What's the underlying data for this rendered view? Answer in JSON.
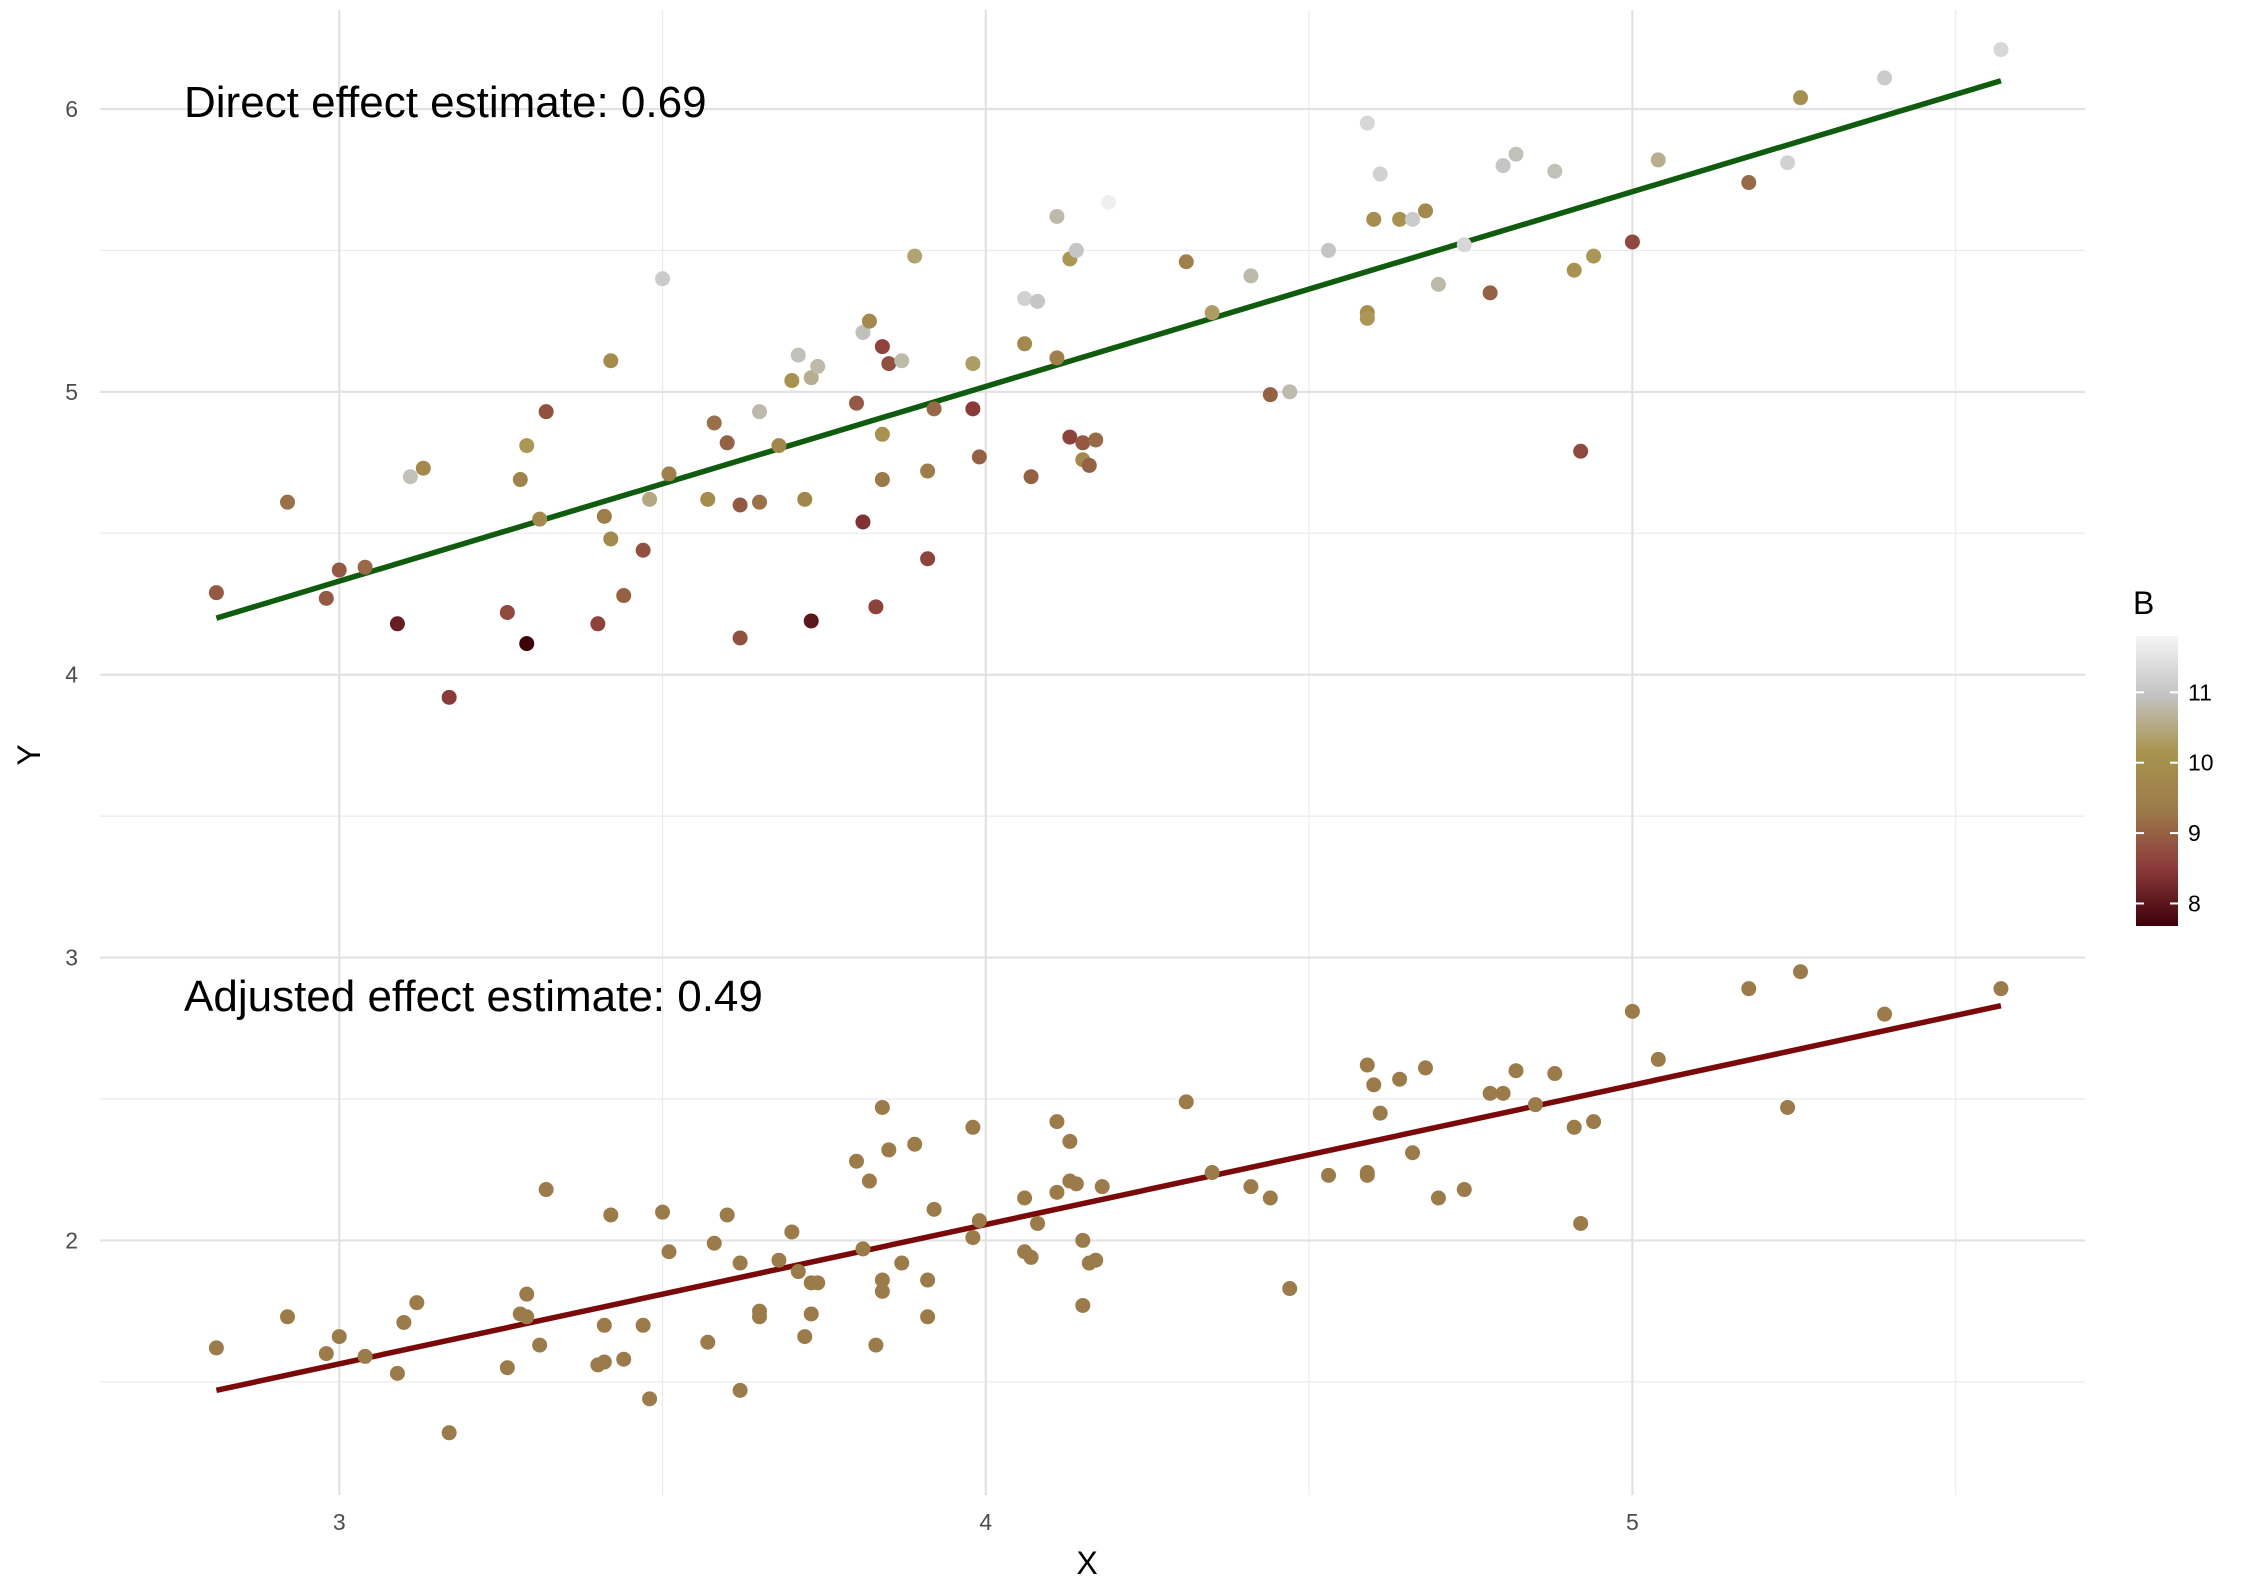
{
  "chart_data": {
    "type": "scatter",
    "xlabel": "X",
    "ylabel": "Y",
    "xlim": [
      2.63,
      5.7
    ],
    "ylim": [
      1.1,
      6.35
    ],
    "x_ticks": [
      "3",
      "4",
      "5"
    ],
    "y_ticks": [
      "2",
      "3",
      "4",
      "5",
      "6"
    ],
    "grid": true,
    "legend": {
      "title": "B",
      "position": "right",
      "ticks": [
        "8",
        "9",
        "10",
        "11"
      ],
      "range": [
        7.68,
        11.8
      ]
    },
    "annotations": [
      {
        "text": "Direct effect estimate: 0.69",
        "x": 2.81,
        "y": 6.14
      },
      {
        "text": "Adjusted effect estimate: 0.49",
        "x": 2.81,
        "y": 2.88
      }
    ],
    "colors": {
      "direct_line": "#0f5c0f",
      "adjusted_line": "#7a0a0a",
      "adjusted_points": "#9c7b4a",
      "color_scale": [
        "#3d0008",
        "#8b3a3a",
        "#9c7b4a",
        "#a8944f",
        "#c4c4c4",
        "#f5f5f5"
      ]
    },
    "series": [
      {
        "name": "direct",
        "color_by": "B",
        "points": [
          [
            2.81,
            4.29,
            8.9
          ],
          [
            2.92,
            4.61,
            9.2
          ],
          [
            2.98,
            4.27,
            8.9
          ],
          [
            3.0,
            4.37,
            8.9
          ],
          [
            3.04,
            4.38,
            9.1
          ],
          [
            3.09,
            4.18,
            8.1
          ],
          [
            3.11,
            4.7,
            10.9
          ],
          [
            3.13,
            4.73,
            9.8
          ],
          [
            3.17,
            3.92,
            8.5
          ],
          [
            3.26,
            4.22,
            8.7
          ],
          [
            3.28,
            4.69,
            9.6
          ],
          [
            3.29,
            4.81,
            10.2
          ],
          [
            3.29,
            4.11,
            7.68
          ],
          [
            3.31,
            4.55,
            9.8
          ],
          [
            3.32,
            4.93,
            8.8
          ],
          [
            3.4,
            4.18,
            8.6
          ],
          [
            3.41,
            4.56,
            9.4
          ],
          [
            3.42,
            4.48,
            9.8
          ],
          [
            3.42,
            5.11,
            9.9
          ],
          [
            3.44,
            4.28,
            9.0
          ],
          [
            3.47,
            4.44,
            8.8
          ],
          [
            3.48,
            4.62,
            10.5
          ],
          [
            3.5,
            5.4,
            11.1
          ],
          [
            3.51,
            4.71,
            9.5
          ],
          [
            3.57,
            4.62,
            9.9
          ],
          [
            3.58,
            4.89,
            9.2
          ],
          [
            3.6,
            4.82,
            9.0
          ],
          [
            3.62,
            4.6,
            8.9
          ],
          [
            3.62,
            4.13,
            8.8
          ],
          [
            3.65,
            4.61,
            9.2
          ],
          [
            3.65,
            4.93,
            10.8
          ],
          [
            3.68,
            4.81,
            9.7
          ],
          [
            3.7,
            5.04,
            10.1
          ],
          [
            3.71,
            5.13,
            10.9
          ],
          [
            3.72,
            4.62,
            9.7
          ],
          [
            3.73,
            5.05,
            10.6
          ],
          [
            3.73,
            4.19,
            8.0
          ],
          [
            3.74,
            5.09,
            10.8
          ],
          [
            3.8,
            4.96,
            8.9
          ],
          [
            3.81,
            5.21,
            10.9
          ],
          [
            3.81,
            4.54,
            8.4
          ],
          [
            3.82,
            5.25,
            9.8
          ],
          [
            3.83,
            4.24,
            8.6
          ],
          [
            3.84,
            4.85,
            10.1
          ],
          [
            3.84,
            5.16,
            8.6
          ],
          [
            3.84,
            4.69,
            9.3
          ],
          [
            3.85,
            5.1,
            8.8
          ],
          [
            3.87,
            5.11,
            10.8
          ],
          [
            3.89,
            5.48,
            10.4
          ],
          [
            3.91,
            4.72,
            9.4
          ],
          [
            3.91,
            4.41,
            8.6
          ],
          [
            3.92,
            4.94,
            9.1
          ],
          [
            3.98,
            5.1,
            10.3
          ],
          [
            3.98,
            4.94,
            8.5
          ],
          [
            3.99,
            4.77,
            9.0
          ],
          [
            4.06,
            5.33,
            11.2
          ],
          [
            4.06,
            5.17,
            9.8
          ],
          [
            4.07,
            4.7,
            9.0
          ],
          [
            4.08,
            5.32,
            11.0
          ],
          [
            4.11,
            5.62,
            10.8
          ],
          [
            4.11,
            5.12,
            9.5
          ],
          [
            4.13,
            5.47,
            10.2
          ],
          [
            4.13,
            4.84,
            8.6
          ],
          [
            4.14,
            5.5,
            11.0
          ],
          [
            4.15,
            4.76,
            9.8
          ],
          [
            4.15,
            4.82,
            8.9
          ],
          [
            4.16,
            4.74,
            9.0
          ],
          [
            4.17,
            4.83,
            9.1
          ],
          [
            4.19,
            5.67,
            11.7
          ],
          [
            4.31,
            5.46,
            9.5
          ],
          [
            4.35,
            5.28,
            10.3
          ],
          [
            4.41,
            5.41,
            10.8
          ],
          [
            4.44,
            4.99,
            9.0
          ],
          [
            4.47,
            5.0,
            10.8
          ],
          [
            4.53,
            5.5,
            11.0
          ],
          [
            4.59,
            5.95,
            11.3
          ],
          [
            4.59,
            5.28,
            10.0
          ],
          [
            4.59,
            5.26,
            10.2
          ],
          [
            4.6,
            5.61,
            10.0
          ],
          [
            4.61,
            5.77,
            11.2
          ],
          [
            4.64,
            5.61,
            10.1
          ],
          [
            4.66,
            5.61,
            11.1
          ],
          [
            4.68,
            5.64,
            9.8
          ],
          [
            4.7,
            5.38,
            10.8
          ],
          [
            4.74,
            5.52,
            11.3
          ],
          [
            4.78,
            5.35,
            9.0
          ],
          [
            4.8,
            5.8,
            11.0
          ],
          [
            4.82,
            5.84,
            10.9
          ],
          [
            4.88,
            5.78,
            10.9
          ],
          [
            4.91,
            5.43,
            10.1
          ],
          [
            4.92,
            4.79,
            8.7
          ],
          [
            4.94,
            5.48,
            10.2
          ],
          [
            5.0,
            5.53,
            8.7
          ],
          [
            5.04,
            5.82,
            10.6
          ],
          [
            5.18,
            5.74,
            9.1
          ],
          [
            5.24,
            5.81,
            11.2
          ],
          [
            5.26,
            6.04,
            10.0
          ],
          [
            5.39,
            6.11,
            11.1
          ],
          [
            5.57,
            6.21,
            11.3
          ]
        ]
      },
      {
        "name": "adjusted",
        "points": [
          [
            2.81,
            1.62
          ],
          [
            2.92,
            1.73
          ],
          [
            2.98,
            1.6
          ],
          [
            3.0,
            1.66
          ],
          [
            3.04,
            1.59
          ],
          [
            3.09,
            1.53
          ],
          [
            3.1,
            1.71
          ],
          [
            3.12,
            1.78
          ],
          [
            3.17,
            1.32
          ],
          [
            3.26,
            1.55
          ],
          [
            3.28,
            1.74
          ],
          [
            3.29,
            1.73
          ],
          [
            3.29,
            1.81
          ],
          [
            3.31,
            1.63
          ],
          [
            3.32,
            2.18
          ],
          [
            3.4,
            1.56
          ],
          [
            3.41,
            1.7
          ],
          [
            3.41,
            1.57
          ],
          [
            3.42,
            2.09
          ],
          [
            3.44,
            1.58
          ],
          [
            3.47,
            1.7
          ],
          [
            3.48,
            1.44
          ],
          [
            3.5,
            2.1
          ],
          [
            3.51,
            1.96
          ],
          [
            3.57,
            1.64
          ],
          [
            3.58,
            1.99
          ],
          [
            3.6,
            2.09
          ],
          [
            3.62,
            1.47
          ],
          [
            3.62,
            1.92
          ],
          [
            3.65,
            1.75
          ],
          [
            3.65,
            1.73
          ],
          [
            3.68,
            1.93
          ],
          [
            3.7,
            2.03
          ],
          [
            3.71,
            1.89
          ],
          [
            3.72,
            1.66
          ],
          [
            3.73,
            1.85
          ],
          [
            3.73,
            1.74
          ],
          [
            3.74,
            1.85
          ],
          [
            3.8,
            2.28
          ],
          [
            3.81,
            1.97
          ],
          [
            3.82,
            2.21
          ],
          [
            3.83,
            1.63
          ],
          [
            3.84,
            1.82
          ],
          [
            3.84,
            1.86
          ],
          [
            3.84,
            2.47
          ],
          [
            3.85,
            2.32
          ],
          [
            3.87,
            1.92
          ],
          [
            3.89,
            2.34
          ],
          [
            3.91,
            1.73
          ],
          [
            3.91,
            1.86
          ],
          [
            3.92,
            2.11
          ],
          [
            3.98,
            2.4
          ],
          [
            3.98,
            2.01
          ],
          [
            3.99,
            2.07
          ],
          [
            4.06,
            2.15
          ],
          [
            4.06,
            1.96
          ],
          [
            4.07,
            1.94
          ],
          [
            4.08,
            2.06
          ],
          [
            4.11,
            2.42
          ],
          [
            4.11,
            2.17
          ],
          [
            4.13,
            2.35
          ],
          [
            4.13,
            2.21
          ],
          [
            4.14,
            2.2
          ],
          [
            4.15,
            1.77
          ],
          [
            4.15,
            2.0
          ],
          [
            4.16,
            1.92
          ],
          [
            4.17,
            1.93
          ],
          [
            4.18,
            2.19
          ],
          [
            4.31,
            2.49
          ],
          [
            4.35,
            2.24
          ],
          [
            4.41,
            2.19
          ],
          [
            4.44,
            2.15
          ],
          [
            4.47,
            1.83
          ],
          [
            4.53,
            2.23
          ],
          [
            4.59,
            2.62
          ],
          [
            4.59,
            2.24
          ],
          [
            4.59,
            2.23
          ],
          [
            4.6,
            2.55
          ],
          [
            4.61,
            2.45
          ],
          [
            4.64,
            2.57
          ],
          [
            4.66,
            2.31
          ],
          [
            4.68,
            2.61
          ],
          [
            4.7,
            2.15
          ],
          [
            4.74,
            2.18
          ],
          [
            4.78,
            2.52
          ],
          [
            4.8,
            2.52
          ],
          [
            4.82,
            2.6
          ],
          [
            4.85,
            2.48
          ],
          [
            4.88,
            2.59
          ],
          [
            4.91,
            2.4
          ],
          [
            4.92,
            2.06
          ],
          [
            4.94,
            2.42
          ],
          [
            5.0,
            2.81
          ],
          [
            5.04,
            2.64
          ],
          [
            5.18,
            2.89
          ],
          [
            5.24,
            2.47
          ],
          [
            5.26,
            2.95
          ],
          [
            5.39,
            2.8
          ],
          [
            5.57,
            2.89
          ]
        ]
      }
    ],
    "fit_lines": [
      {
        "name": "direct",
        "x": [
          2.81,
          5.57
        ],
        "y": [
          4.2,
          6.1
        ]
      },
      {
        "name": "adjusted",
        "x": [
          2.81,
          5.57
        ],
        "y": [
          1.47,
          2.83
        ]
      }
    ]
  }
}
